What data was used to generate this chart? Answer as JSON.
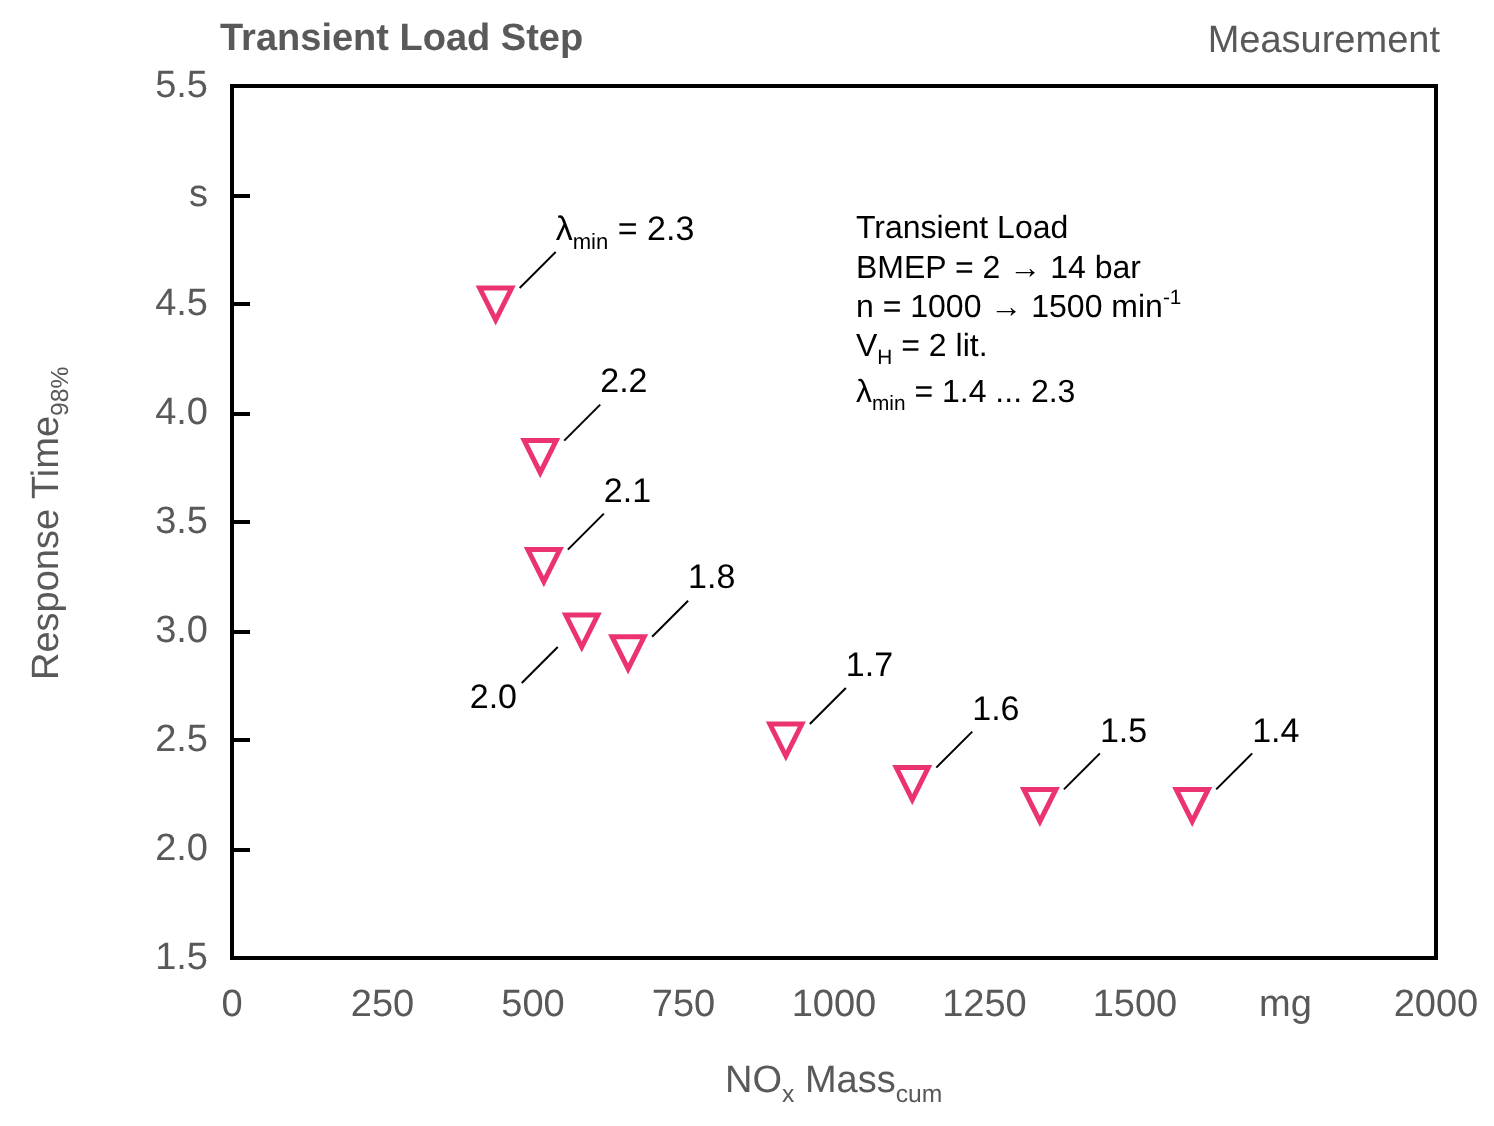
{
  "chart_data": {
    "type": "scatter",
    "title": "Transient Load Step",
    "subtitle": "Measurement",
    "xlabel": "NO$_{x}$ Mass$_{cum}$",
    "ylabel": "Response Time$_{98%}$",
    "x": [
      438,
      512,
      518,
      581,
      658,
      920,
      1130,
      1342,
      1595
    ],
    "series": [
      {
        "color": "#e6004c",
        "values": [
          4.5,
          3.8,
          3.3,
          3.0,
          2.9,
          2.5,
          2.3,
          2.2,
          2.2
        ]
      }
    ],
    "marker": "triangle",
    "grid": false,
    "xlim": [
      0,
      2000
    ],
    "xticks": [
      0,
      250,
      500,
      750,
      1000,
      1250,
      1500,
      {
        "value": 1750,
        "label": "mg"
      },
      2000
    ],
    "ylim": [
      1.5,
      5.5
    ],
    "yticks": [
      1.5,
      {
        "value": 2,
        "label": "2.0"
      },
      2.5,
      {
        "value": 3,
        "label": "3.0"
      },
      3.5,
      {
        "value": 4,
        "label": "4.0"
      },
      4.5,
      {
        "value": 5,
        "label": "s"
      },
      5.5
    ],
    "annotations": [
      {
        "text": "λ$_{min}$ = 2.3",
        "x": 438,
        "y": 4.5
      },
      {
        "text": "2.2",
        "x": 512,
        "y": 3.8
      },
      {
        "text": "2.1",
        "x": 518,
        "y": 3.3
      },
      {
        "text": "2.0",
        "x": 581,
        "y": 3.0
      },
      {
        "text": "1.8",
        "x": 658,
        "y": 2.9
      },
      {
        "text": "1.7",
        "x": 920,
        "y": 2.5
      },
      {
        "text": "1.6",
        "x": 1130,
        "y": 2.3
      },
      {
        "text": "1.5",
        "x": 1342,
        "y": 2.2
      },
      {
        "text": "1.4",
        "x": 1595,
        "y": 2.2
      },
      "Transient Load",
      "BMEP = 2 → 14 bar",
      "n = 1000 → 1500 min$^{-1}$",
      "V$_{H}$ = 2 lit.",
      "λ$_{min}$ = 1.4 ... 2.3"
    ]
  }
}
